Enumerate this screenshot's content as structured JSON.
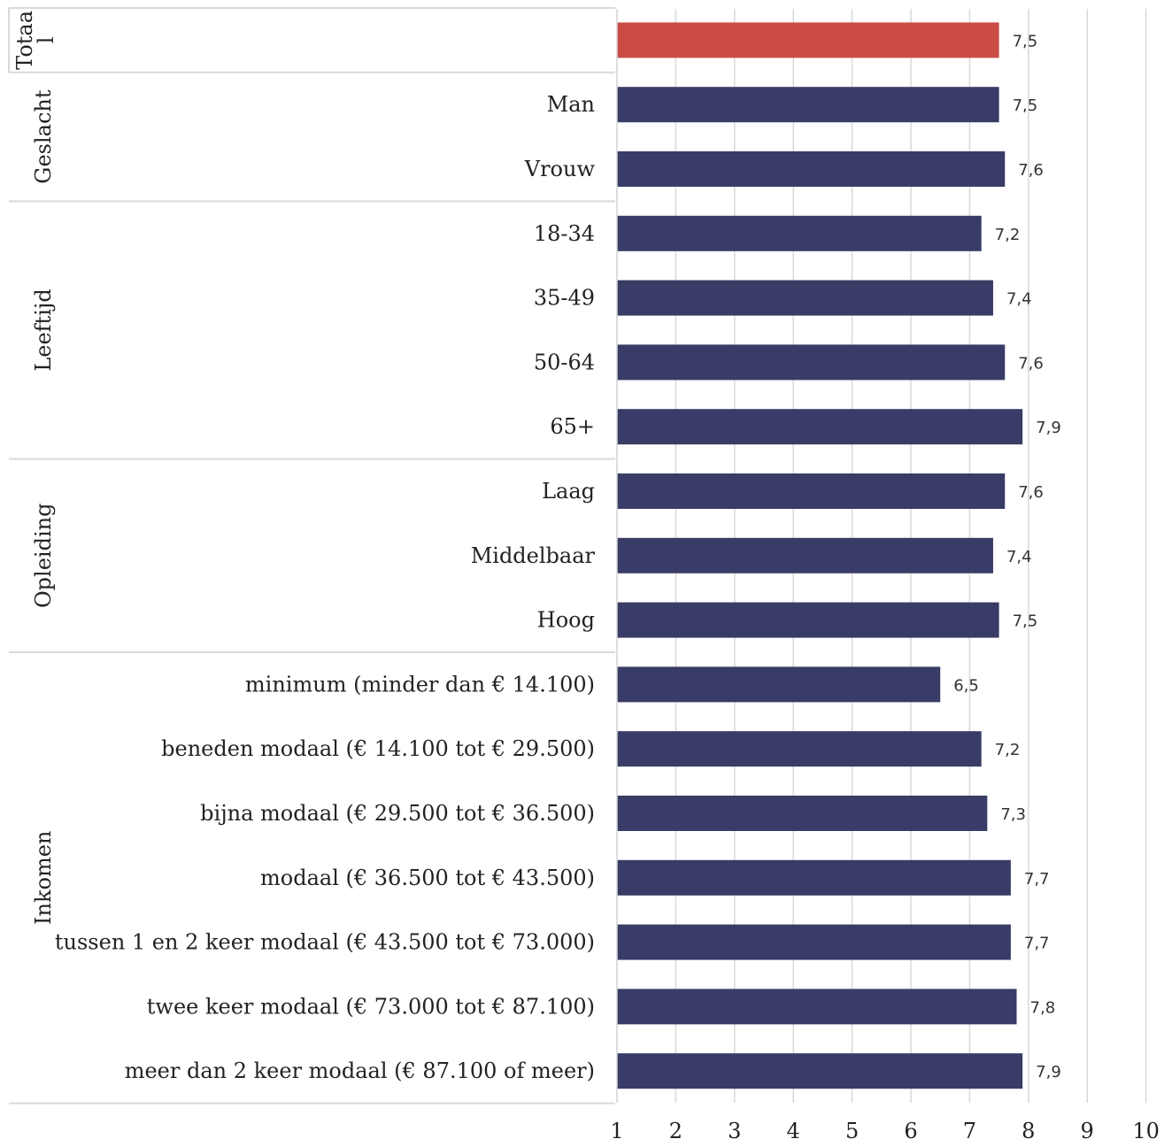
{
  "chart_data": {
    "type": "bar",
    "orientation": "horizontal",
    "title": "",
    "xlabel": "",
    "ylabel": "",
    "xlim": [
      1,
      10
    ],
    "ticks": [
      "1",
      "2",
      "3",
      "4",
      "5",
      "6",
      "7",
      "8",
      "9",
      "10"
    ],
    "grid": true,
    "legend": "none",
    "groups": [
      {
        "label": "Totaal",
        "label_lines": [
          "Totaa",
          "l"
        ],
        "items": [
          {
            "label": "",
            "value": 7.5,
            "value_label": "7,5",
            "highlight": true
          }
        ]
      },
      {
        "label": "Geslacht",
        "items": [
          {
            "label": "Man",
            "value": 7.5,
            "value_label": "7,5"
          },
          {
            "label": "Vrouw",
            "value": 7.6,
            "value_label": "7,6"
          }
        ]
      },
      {
        "label": "Leeftijd",
        "items": [
          {
            "label": "18-34",
            "value": 7.2,
            "value_label": "7,2"
          },
          {
            "label": "35-49",
            "value": 7.4,
            "value_label": "7,4"
          },
          {
            "label": "50-64",
            "value": 7.6,
            "value_label": "7,6"
          },
          {
            "label": "65+",
            "value": 7.9,
            "value_label": "7,9"
          }
        ]
      },
      {
        "label": "Opleiding",
        "items": [
          {
            "label": "Laag",
            "value": 7.6,
            "value_label": "7,6"
          },
          {
            "label": "Middelbaar",
            "value": 7.4,
            "value_label": "7,4"
          },
          {
            "label": "Hoog",
            "value": 7.5,
            "value_label": "7,5"
          }
        ]
      },
      {
        "label": "Inkomen",
        "items": [
          {
            "label": "minimum (minder dan € 14.100)",
            "value": 6.5,
            "value_label": "6,5"
          },
          {
            "label": "beneden modaal (€ 14.100 tot € 29.500)",
            "value": 7.2,
            "value_label": "7,2"
          },
          {
            "label": "bijna modaal (€ 29.500 tot € 36.500)",
            "value": 7.3,
            "value_label": "7,3"
          },
          {
            "label": "modaal (€ 36.500 tot € 43.500)",
            "value": 7.7,
            "value_label": "7,7"
          },
          {
            "label": "tussen 1 en 2 keer modaal (€ 43.500 tot € 73.000)",
            "value": 7.7,
            "value_label": "7,7"
          },
          {
            "label": "twee keer modaal (€ 73.000 tot € 87.100)",
            "value": 7.8,
            "value_label": "7,8"
          },
          {
            "label": "meer dan 2 keer modaal (€ 87.100 of meer)",
            "value": 7.9,
            "value_label": "7,9"
          }
        ]
      }
    ],
    "colors": {
      "bar": "#383c66",
      "highlight": "#cb4b45",
      "grid": "#d9d9d9"
    }
  }
}
